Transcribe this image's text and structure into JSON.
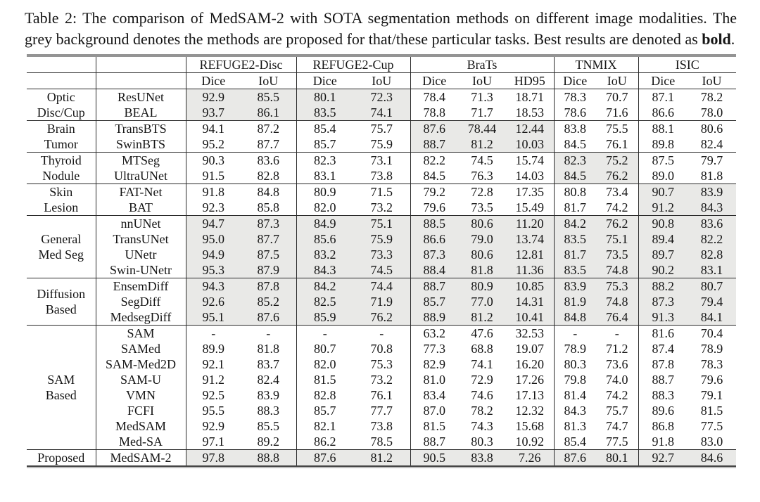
{
  "caption": {
    "text": "Table 2: The comparison of MedSAM-2 with SOTA segmentation methods on different image modalities. The grey background denotes the methods are proposed for that/these particular tasks. Best results are denoted as ",
    "bold_word": "bold",
    "suffix": "."
  },
  "colors": {
    "highlight_grey": "#e9e9e7",
    "rule_dark": "#2a2a2a",
    "top_rule_grey": "#949494"
  },
  "table": {
    "column_groups": [
      {
        "label": "REFUGE2-Disc",
        "metrics": [
          "Dice",
          "IoU"
        ]
      },
      {
        "label": "REFUGE2-Cup",
        "metrics": [
          "Dice",
          "IoU"
        ]
      },
      {
        "label": "BraTs",
        "metrics": [
          "Dice",
          "IoU",
          "HD95"
        ]
      },
      {
        "label": "TNMIX",
        "metrics": [
          "Dice",
          "IoU"
        ]
      },
      {
        "label": "ISIC",
        "metrics": [
          "Dice",
          "IoU"
        ]
      }
    ],
    "groups": [
      {
        "label_lines": [
          "Optic",
          "Disc/Cup"
        ],
        "grey_cols": [
          0,
          1,
          2,
          3
        ],
        "rows": [
          {
            "method": "ResUNet",
            "values": [
              "92.9",
              "85.5",
              "80.1",
              "72.3",
              "78.4",
              "71.3",
              "18.71",
              "78.3",
              "70.7",
              "87.1",
              "78.2"
            ],
            "bold": []
          },
          {
            "method": "BEAL",
            "values": [
              "93.7",
              "86.1",
              "83.5",
              "74.1",
              "78.8",
              "71.7",
              "18.53",
              "78.6",
              "71.6",
              "86.6",
              "78.0"
            ],
            "bold": []
          }
        ]
      },
      {
        "label_lines": [
          "Brain",
          "Tumor"
        ],
        "grey_cols": [
          4,
          5,
          6
        ],
        "rows": [
          {
            "method": "TransBTS",
            "values": [
              "94.1",
              "87.2",
              "85.4",
              "75.7",
              "87.6",
              "78.44",
              "12.44",
              "83.8",
              "75.5",
              "88.1",
              "80.6"
            ],
            "bold": []
          },
          {
            "method": "SwinBTS",
            "values": [
              "95.2",
              "87.7",
              "85.7",
              "75.9",
              "88.7",
              "81.2",
              "10.03",
              "84.5",
              "76.1",
              "89.8",
              "82.4"
            ],
            "bold": []
          }
        ]
      },
      {
        "label_lines": [
          "Thyroid",
          "Nodule"
        ],
        "grey_cols": [
          7,
          8
        ],
        "rows": [
          {
            "method": "MTSeg",
            "values": [
              "90.3",
              "83.6",
              "82.3",
              "73.1",
              "82.2",
              "74.5",
              "15.74",
              "82.3",
              "75.2",
              "87.5",
              "79.7"
            ],
            "bold": []
          },
          {
            "method": "UltraUNet",
            "values": [
              "91.5",
              "82.8",
              "83.1",
              "73.8",
              "84.5",
              "76.3",
              "14.03",
              "84.5",
              "76.2",
              "89.0",
              "81.8"
            ],
            "bold": []
          }
        ]
      },
      {
        "label_lines": [
          "Skin",
          "Lesion"
        ],
        "grey_cols": [
          9,
          10
        ],
        "rows": [
          {
            "method": "FAT-Net",
            "values": [
              "91.8",
              "84.8",
              "80.9",
              "71.5",
              "79.2",
              "72.8",
              "17.35",
              "80.8",
              "73.4",
              "90.7",
              "83.9"
            ],
            "bold": []
          },
          {
            "method": "BAT",
            "values": [
              "92.3",
              "85.8",
              "82.0",
              "73.2",
              "79.6",
              "73.5",
              "15.49",
              "81.7",
              "74.2",
              "91.2",
              "84.3"
            ],
            "bold": []
          }
        ]
      },
      {
        "label_lines": [
          "General",
          "Med Seg"
        ],
        "grey_cols": [
          0,
          1,
          2,
          3,
          4,
          5,
          6,
          7,
          8,
          9,
          10
        ],
        "rows": [
          {
            "method": "nnUNet",
            "values": [
              "94.7",
              "87.3",
              "84.9",
              "75.1",
              "88.5",
              "80.6",
              "11.20",
              "84.2",
              "76.2",
              "90.8",
              "83.6"
            ],
            "bold": []
          },
          {
            "method": "TransUNet",
            "values": [
              "95.0",
              "87.7",
              "85.6",
              "75.9",
              "86.6",
              "79.0",
              "13.74",
              "83.5",
              "75.1",
              "89.4",
              "82.2"
            ],
            "bold": []
          },
          {
            "method": "UNetr",
            "values": [
              "94.9",
              "87.5",
              "83.2",
              "73.3",
              "87.3",
              "80.6",
              "12.81",
              "81.7",
              "73.5",
              "89.7",
              "82.8"
            ],
            "bold": []
          },
          {
            "method": "Swin-UNetr",
            "values": [
              "95.3",
              "87.9",
              "84.3",
              "74.5",
              "88.4",
              "81.8",
              "11.36",
              "83.5",
              "74.8",
              "90.2",
              "83.1"
            ],
            "bold": []
          }
        ]
      },
      {
        "label_lines": [
          "Diffusion",
          "Based"
        ],
        "grey_cols": [
          0,
          1,
          2,
          3,
          4,
          5,
          6,
          7,
          8,
          9,
          10
        ],
        "rows": [
          {
            "method": "EnsemDiff",
            "values": [
              "94.3",
              "87.8",
              "84.2",
              "74.4",
              "88.7",
              "80.9",
              "10.85",
              "83.9",
              "75.3",
              "88.2",
              "80.7"
            ],
            "bold": []
          },
          {
            "method": "SegDiff",
            "values": [
              "92.6",
              "85.2",
              "82.5",
              "71.9",
              "85.7",
              "77.0",
              "14.31",
              "81.9",
              "74.8",
              "87.3",
              "79.4"
            ],
            "bold": []
          },
          {
            "method": "MedsegDiff",
            "values": [
              "95.1",
              "87.6",
              "85.9",
              "76.2",
              "88.9",
              "81.2",
              "10.41",
              "84.8",
              "76.4",
              "91.3",
              "84.1"
            ],
            "bold": []
          }
        ]
      },
      {
        "label_lines": [
          "SAM",
          "Based"
        ],
        "grey_cols": [],
        "rows": [
          {
            "method": "SAM",
            "values": [
              "-",
              "-",
              "-",
              "-",
              "63.2",
              "47.6",
              "32.53",
              "-",
              "-",
              "81.6",
              "70.4"
            ],
            "bold": []
          },
          {
            "method": "SAMed",
            "values": [
              "89.9",
              "81.8",
              "80.7",
              "70.8",
              "77.3",
              "68.8",
              "19.07",
              "78.9",
              "71.2",
              "87.4",
              "78.9"
            ],
            "bold": []
          },
          {
            "method": "SAM-Med2D",
            "values": [
              "92.1",
              "83.7",
              "82.0",
              "75.3",
              "82.9",
              "74.1",
              "16.20",
              "80.3",
              "73.6",
              "87.8",
              "78.3"
            ],
            "bold": []
          },
          {
            "method": "SAM-U",
            "values": [
              "91.2",
              "82.4",
              "81.5",
              "73.2",
              "81.0",
              "72.9",
              "17.26",
              "79.8",
              "74.0",
              "88.7",
              "79.6"
            ],
            "bold": []
          },
          {
            "method": "VMN",
            "values": [
              "92.5",
              "83.9",
              "82.8",
              "76.1",
              "83.4",
              "74.6",
              "17.13",
              "81.4",
              "74.2",
              "88.3",
              "79.1"
            ],
            "bold": []
          },
          {
            "method": "FCFI",
            "values": [
              "95.5",
              "88.3",
              "85.7",
              "77.7",
              "87.0",
              "78.2",
              "12.32",
              "84.3",
              "75.7",
              "89.6",
              "81.5"
            ],
            "bold": []
          },
          {
            "method": "MedSAM",
            "values": [
              "92.9",
              "85.5",
              "82.1",
              "73.8",
              "81.5",
              "74.3",
              "15.68",
              "81.3",
              "74.7",
              "86.8",
              "77.5"
            ],
            "bold": []
          },
          {
            "method": "Med-SA",
            "values": [
              "97.1",
              "89.2",
              "86.2",
              "78.5",
              "88.7",
              "80.3",
              "10.92",
              "85.4",
              "77.5",
              "91.8",
              "83.0"
            ],
            "bold": [
              1
            ]
          }
        ]
      },
      {
        "label_lines": [
          "Proposed"
        ],
        "grey_cols": [
          0,
          1,
          2,
          3,
          4,
          5,
          6,
          7,
          8,
          9,
          10
        ],
        "rows": [
          {
            "method": "MedSAM-2",
            "values": [
              "97.8",
              "88.8",
              "87.6",
              "81.2",
              "90.5",
              "83.8",
              "7.26",
              "87.6",
              "80.1",
              "92.7",
              "84.6"
            ],
            "bold": [
              0,
              2,
              3,
              4,
              5,
              6,
              7,
              8,
              9,
              10
            ]
          }
        ]
      }
    ]
  }
}
